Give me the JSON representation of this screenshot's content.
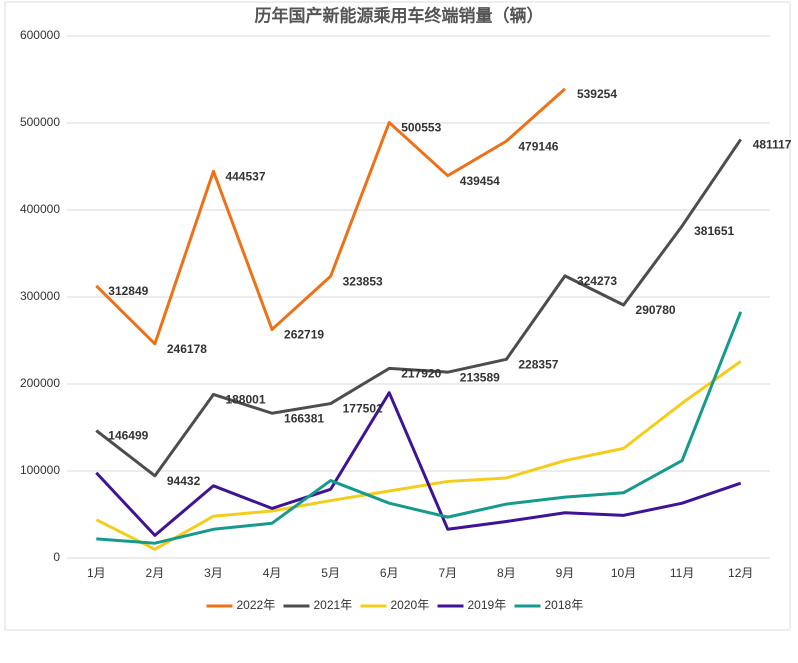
{
  "chart_data": {
    "type": "line",
    "title": "历年国产新能源乘用车终端销量（辆）",
    "categories": [
      "1月",
      "2月",
      "3月",
      "4月",
      "5月",
      "6月",
      "7月",
      "8月",
      "9月",
      "10月",
      "11月",
      "12月"
    ],
    "series": [
      {
        "name": "2022年",
        "color": "#ee7118",
        "labels": true,
        "values": [
          312849,
          246178,
          444537,
          262719,
          323853,
          500553,
          439454,
          479146,
          539254,
          null,
          null,
          null
        ]
      },
      {
        "name": "2021年",
        "color": "#4d4d4d",
        "labels": true,
        "values": [
          146499,
          94432,
          188001,
          166381,
          177501,
          217920,
          213589,
          228357,
          324273,
          290780,
          381651,
          481117
        ]
      },
      {
        "name": "2020年",
        "color": "#f4cd1a",
        "values": [
          44000,
          10000,
          48000,
          54000,
          66000,
          77000,
          88000,
          92000,
          112000,
          126000,
          178000,
          226000
        ]
      },
      {
        "name": "2019年",
        "color": "#3f1396",
        "values": [
          98000,
          26000,
          83000,
          57000,
          79000,
          190000,
          33000,
          42000,
          52000,
          49000,
          63000,
          86000
        ]
      },
      {
        "name": "2018年",
        "color": "#159a8c",
        "values": [
          22000,
          17000,
          33000,
          40000,
          89000,
          63000,
          47000,
          62000,
          70000,
          75000,
          112000,
          283000
        ]
      }
    ],
    "ylim": [
      0,
      600000
    ],
    "yticks": [
      0,
      100000,
      200000,
      300000,
      400000,
      500000,
      600000
    ],
    "grid": true,
    "legend": "bottom"
  }
}
